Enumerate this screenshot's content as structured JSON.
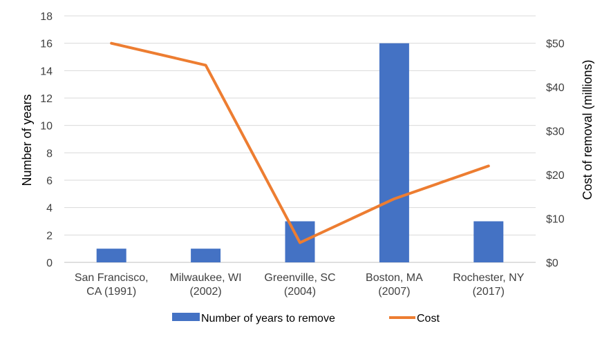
{
  "chart_data": {
    "type": "bar+line",
    "title": "",
    "categories": [
      [
        "San Francisco,",
        "CA (1991)"
      ],
      [
        "Milwaukee, WI",
        "(2002)"
      ],
      [
        "Greenville, SC",
        "(2004)"
      ],
      [
        "Boston, MA",
        "(2007)"
      ],
      [
        "Rochester, NY",
        "(2017)"
      ]
    ],
    "series": [
      {
        "name": "Number of years to remove",
        "type": "bar",
        "axis": "left",
        "color": "#4472C4",
        "values": [
          1,
          1,
          3,
          16,
          3
        ]
      },
      {
        "name": "Cost",
        "type": "line",
        "axis": "right",
        "color": "#ED7D31",
        "values": [
          50,
          45,
          4.5,
          14.5,
          22
        ]
      }
    ],
    "left_axis": {
      "label": "Number of years",
      "min": 0,
      "max": 18,
      "ticks": [
        0,
        2,
        4,
        6,
        8,
        10,
        12,
        14,
        16,
        18
      ]
    },
    "right_axis": {
      "label": "Cost of removal (millions)",
      "min": 0,
      "max": 56.25,
      "ticks": [
        0,
        10,
        20,
        30,
        40,
        50
      ],
      "tick_labels": [
        "$0",
        "$10",
        "$20",
        "$30",
        "$40",
        "$50"
      ]
    },
    "grid": true,
    "legend_position": "bottom"
  }
}
